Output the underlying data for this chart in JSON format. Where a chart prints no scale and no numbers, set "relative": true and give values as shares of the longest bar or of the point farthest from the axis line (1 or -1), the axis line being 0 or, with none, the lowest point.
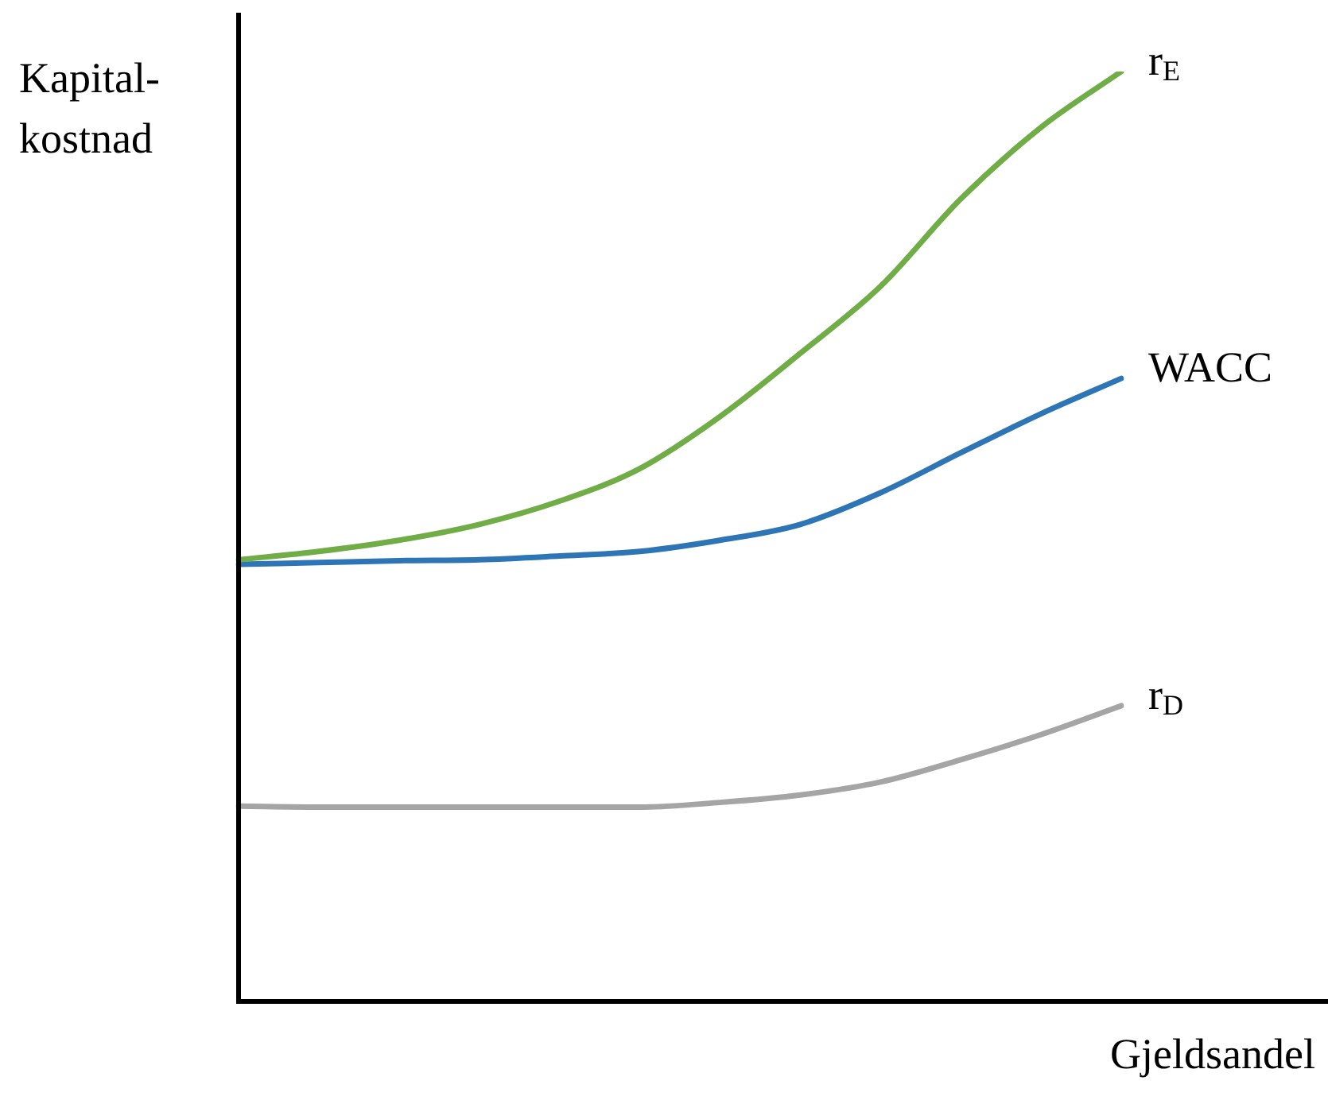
{
  "chart_data": {
    "type": "line",
    "relative": true,
    "ylabel": "Kapital-kostnad",
    "xlabel": "Gjeldsandel",
    "categories": [
      null,
      null,
      null,
      null,
      null,
      null,
      null,
      null,
      null,
      null,
      null,
      null
    ],
    "series": [
      {
        "name": "r$_{E}$",
        "color": "#70ad47",
        "values": [
          0.475,
          0.484,
          0.496,
          0.513,
          0.538,
          0.573,
          0.629,
          0.697,
          0.769,
          0.863,
          0.94,
          1
        ]
      },
      {
        "name": "WACC",
        "color": "#2e75b6",
        "values": [
          0.47,
          0.472,
          0.474,
          0.475,
          0.479,
          0.484,
          0.496,
          0.513,
          0.547,
          0.59,
          0.632,
          0.67
        ]
      },
      {
        "name": "r$_{D}$",
        "color": "#a5a5a5",
        "values": [
          0.21,
          0.209,
          0.209,
          0.209,
          0.209,
          0.209,
          0.214,
          0.222,
          0.236,
          0.26,
          0.287,
          0.318
        ]
      }
    ]
  }
}
